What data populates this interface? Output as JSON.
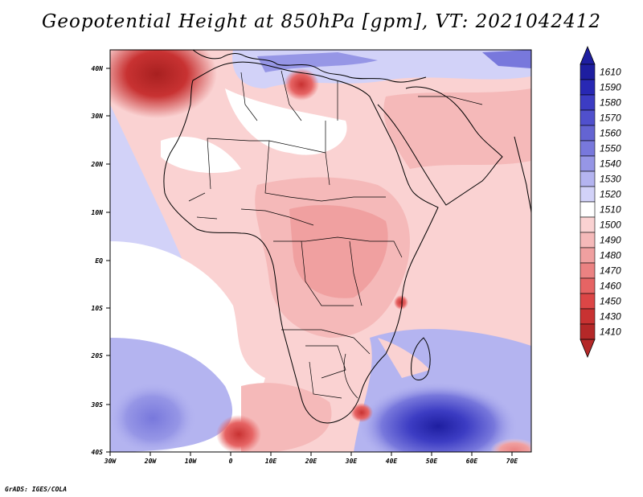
{
  "title": "Geopotential Height at 850hPa [gpm], VT: 2021042412",
  "credit": "GrADS: IGES/COLA",
  "map": {
    "lat_labels": [
      "40N",
      "30N",
      "20N",
      "10N",
      "EQ",
      "10S",
      "20S",
      "30S",
      "40S"
    ],
    "lon_labels": [
      "30W",
      "20W",
      "10W",
      "0",
      "10E",
      "20E",
      "30E",
      "40E",
      "50E",
      "60E",
      "70E"
    ],
    "lat_range": [
      -40,
      45
    ],
    "lon_range": [
      -30,
      75
    ]
  },
  "colorbar": {
    "levels": [
      "1610",
      "1590",
      "1580",
      "1570",
      "1560",
      "1550",
      "1540",
      "1530",
      "1520",
      "1510",
      "1500",
      "1490",
      "1480",
      "1470",
      "1460",
      "1450",
      "1430",
      "1410"
    ],
    "colors": [
      "#1e1ea0",
      "#2828b4",
      "#3c3cc3",
      "#5050cd",
      "#6464d2",
      "#7878dc",
      "#9696e6",
      "#b4b4f0",
      "#d2d2f8",
      "#ffffff",
      "#fad2d2",
      "#f5b9b9",
      "#f0a0a0",
      "#eb8282",
      "#e66464",
      "#dc4646",
      "#c83232",
      "#b42828"
    ]
  }
}
